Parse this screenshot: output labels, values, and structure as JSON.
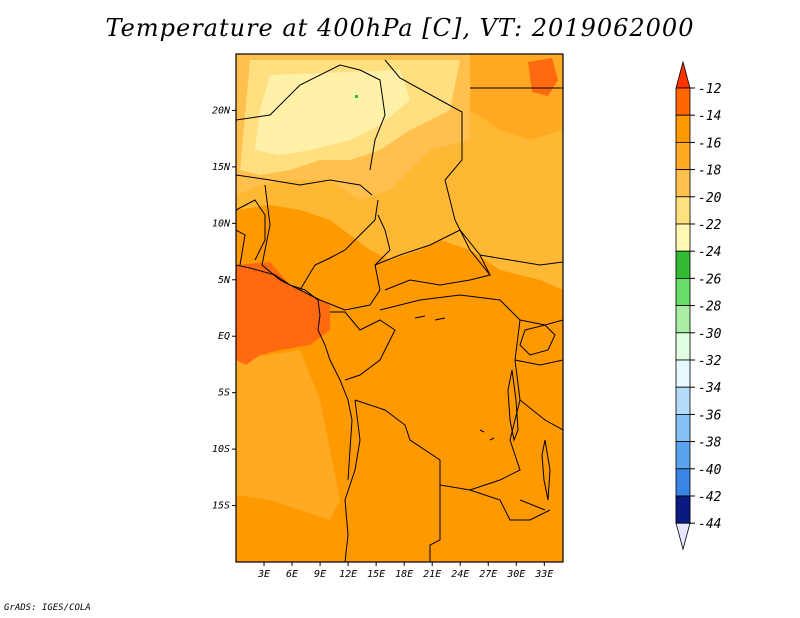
{
  "title": "Temperature at 400hPa [C], VT: 2019062000",
  "credit": "GrADS: IGES/COLA",
  "map": {
    "lon_range": [
      0,
      35
    ],
    "lat_range": [
      -20,
      25
    ],
    "lat_ticks": [
      {
        "lat": 20,
        "label": "20N"
      },
      {
        "lat": 15,
        "label": "15N"
      },
      {
        "lat": 10,
        "label": "10N"
      },
      {
        "lat": 5,
        "label": "5N"
      },
      {
        "lat": 0,
        "label": "EQ"
      },
      {
        "lat": -5,
        "label": "5S"
      },
      {
        "lat": -10,
        "label": "10S"
      },
      {
        "lat": -15,
        "label": "15S"
      }
    ],
    "lon_ticks": [
      {
        "lon": 3,
        "label": "3E"
      },
      {
        "lon": 6,
        "label": "6E"
      },
      {
        "lon": 9,
        "label": "9E"
      },
      {
        "lon": 12,
        "label": "12E"
      },
      {
        "lon": 15,
        "label": "15E"
      },
      {
        "lon": 18,
        "label": "18E"
      },
      {
        "lon": 21,
        "label": "21E"
      },
      {
        "lon": 24,
        "label": "24E"
      },
      {
        "lon": 27,
        "label": "27E"
      },
      {
        "lon": 30,
        "label": "30E"
      },
      {
        "lon": 33,
        "label": "33E"
      }
    ]
  },
  "colorbar": {
    "levels": [
      {
        "label": "-12",
        "color": "#ff6600"
      },
      {
        "label": "-14",
        "color": "#ff9900"
      },
      {
        "label": "-16",
        "color": "#ffaa22"
      },
      {
        "label": "-18",
        "color": "#ffc04d"
      },
      {
        "label": "-20",
        "color": "#ffe27f"
      },
      {
        "label": "-22",
        "color": "#fff7b3"
      },
      {
        "label": "-24",
        "color": "#33bb33"
      },
      {
        "label": "-26",
        "color": "#66dd66"
      },
      {
        "label": "-28",
        "color": "#aaeea6"
      },
      {
        "label": "-30",
        "color": "#e0ffe0"
      },
      {
        "label": "-32",
        "color": "#e8f8ff"
      },
      {
        "label": "-34",
        "color": "#b4dcfa"
      },
      {
        "label": "-36",
        "color": "#86c0f4"
      },
      {
        "label": "-38",
        "color": "#5aa4ee"
      },
      {
        "label": "-40",
        "color": "#3a84e6"
      },
      {
        "label": "-42",
        "color": "#1e64d6"
      },
      {
        "label": "-44",
        "color": "#0c48c0"
      }
    ],
    "top_arrow_color": "#ff3300",
    "bottom_block_color": "#0a1a80",
    "bottom_arrow_color": "#e6e6ff"
  },
  "colors": {
    "warm_region": "#ff9900",
    "hot_region": "#ff6a10",
    "cool_region": "#ffc04d",
    "cooler_region": "#ffdf80",
    "coolest_region": "#fff2a8",
    "green_dot": "#33bb33"
  }
}
